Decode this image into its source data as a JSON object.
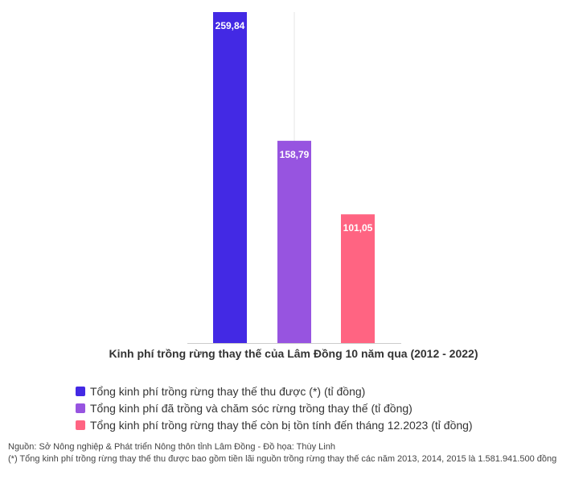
{
  "chart_data": {
    "type": "bar",
    "title": "",
    "xlabel": "Kinh phí trồng rừng thay thế của Lâm Đồng 10 năm qua (2012 - 2022)",
    "ylabel": "",
    "ylim": [
      0,
      259.84
    ],
    "grid": true,
    "legend_position": "bottom-left",
    "series": [
      {
        "name": "Tổng kinh phí trồng rừng thay thế thu được (*) (tỉ đồng)",
        "value": 259.84,
        "label": "259,84",
        "color": "#4329e4"
      },
      {
        "name": "Tổng kinh phí đã trồng và chăm sóc rừng trồng thay thế (tỉ đồng)",
        "value": 158.79,
        "label": "158,79",
        "color": "#9754e0"
      },
      {
        "name": "Tổng kinh phí trồng rừng thay thế còn bị tồn tính đến tháng 12.2023 (tỉ đồng)",
        "value": 101.05,
        "label": "101,05",
        "color": "#ff6482"
      }
    ]
  },
  "footer": {
    "source": "Nguồn: Sở Nông nghiệp & Phát triển Nông thôn tỉnh Lâm Đồng - Đồ họa: Thùy Linh",
    "note": "(*) Tổng kinh phí trồng rừng thay thế thu được bao gồm tiền lãi nguồn trồng rừng thay thế các năm 2013, 2014, 2015 là 1.581.941.500 đồng"
  }
}
